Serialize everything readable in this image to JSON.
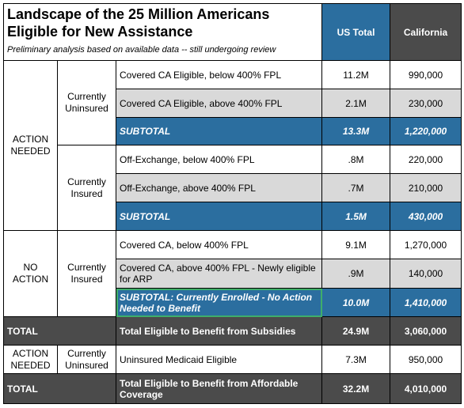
{
  "header": {
    "title": "Landscape of the 25 Million Americans Eligible for New Assistance",
    "subtitle": "Preliminary analysis based on available data -- still undergoing review",
    "col_us": "US Total",
    "col_ca": "California"
  },
  "groups": {
    "action_needed": "ACTION NEEDED",
    "no_action": "NO ACTION",
    "currently_uninsured": "Currently Uninsured",
    "currently_insured": "Currently Insured"
  },
  "rows": {
    "r1": {
      "label": "Covered CA Eligible, below 400% FPL",
      "us": "11.2M",
      "ca": "990,000"
    },
    "r2": {
      "label": "Covered CA Eligible, above 400% FPL",
      "us": "2.1M",
      "ca": "230,000"
    },
    "s1": {
      "label": "SUBTOTAL",
      "us": "13.3M",
      "ca": "1,220,000"
    },
    "r3": {
      "label": "Off-Exchange, below 400% FPL",
      "us": ".8M",
      "ca": "220,000"
    },
    "r4": {
      "label": "Off-Exchange, above 400% FPL",
      "us": ".7M",
      "ca": "210,000"
    },
    "s2": {
      "label": "SUBTOTAL",
      "us": "1.5M",
      "ca": "430,000"
    },
    "r5": {
      "label": "Covered CA, below 400% FPL",
      "us": "9.1M",
      "ca": "1,270,000"
    },
    "r6": {
      "label": "Covered CA, above 400% FPL - Newly eligible for ARP",
      "us": ".9M",
      "ca": "140,000"
    },
    "s3": {
      "label": "SUBTOTAL: Currently Enrolled - No Action Needed to Benefit",
      "us": "10.0M",
      "ca": "1,410,000"
    },
    "t1": {
      "name": "TOTAL",
      "label": "Total Eligible to Benefit from Subsidies",
      "us": "24.9M",
      "ca": "3,060,000"
    },
    "r7": {
      "label": "Uninsured Medicaid Eligible",
      "us": "7.3M",
      "ca": "950,000"
    },
    "t2": {
      "name": "TOTAL",
      "label": "Total Eligible to Benefit from Affordable Coverage",
      "us": "32.2M",
      "ca": "4,010,000"
    }
  }
}
